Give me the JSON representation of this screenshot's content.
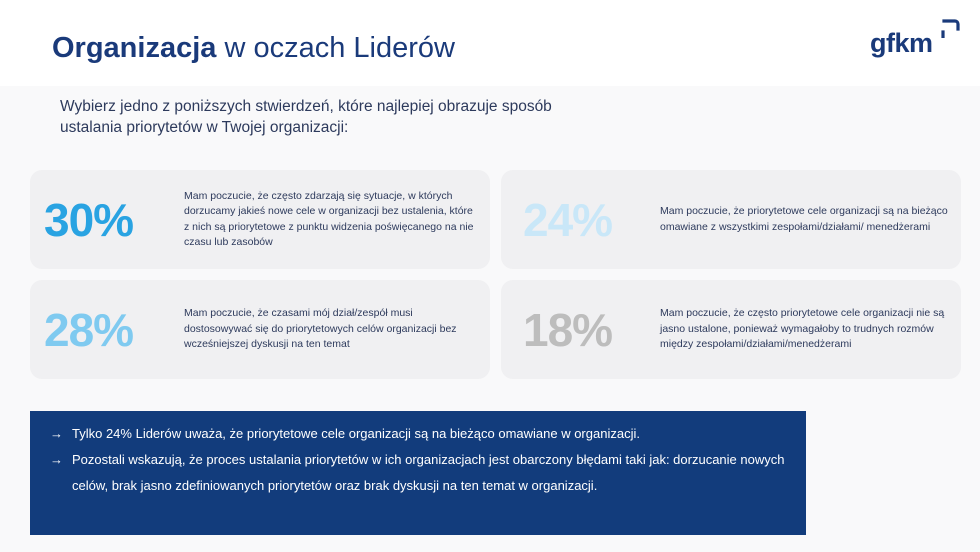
{
  "header": {
    "title_bold": "Organizacja",
    "title_rest": "w oczach Liderów",
    "logo_text": "gfkm"
  },
  "question": "Wybierz jedno z poniższych stwierdzeń, które najlepiej obrazuje sposób ustalania priorytetów w Twojej organizacji:",
  "cards": [
    {
      "percent": "30%",
      "color": "#29a3e2",
      "text": "Mam poczucie, że często zdarzają się sytuacje, w których dorzucamy jakieś nowe cele w organizacji bez ustalenia, które z nich są priorytetowe z punktu widzenia poświęcanego na nie czasu lub zasobów"
    },
    {
      "percent": "24%",
      "color": "#c9e7f8",
      "text": "Mam poczucie, że priorytetowe cele organizacji są na bieżąco omawiane z wszystkimi zespołami/działami/ menedżerami"
    },
    {
      "percent": "28%",
      "color": "#7fcaf0",
      "text": "Mam poczucie, że czasami mój dział/zespół musi dostosowywać się do priorytetowych celów organizacji bez wcześniejszej dyskusji na ten temat"
    },
    {
      "percent": "18%",
      "color": "#bdbdbd",
      "text": "Mam poczucie, że często priorytetowe cele organizacji nie są jasno ustalone, ponieważ wymagałoby to trudnych rozmów między zespołami/działami/menedżerami"
    }
  ],
  "summary": {
    "bullets": [
      "Tylko 24% Liderów uważa, że priorytetowe cele organizacji są na bieżąco omawiane w organizacji.",
      "Pozostali wskazują, że proces ustalania priorytetów w ich organizacjach jest obarczony błędami taki jak: dorzucanie nowych celów, brak jasno zdefiniowanych priorytetów oraz brak dyskusji na ten temat w organizacji."
    ]
  },
  "colors": {
    "title": "#1a3a7a",
    "summary_bg": "#123c7c",
    "card_bg": "#f0f0f2",
    "body_text": "#2d3a5c"
  },
  "icons": {
    "logo_mark": "bracket-logo-icon",
    "bullet": "arrow-right-icon"
  }
}
